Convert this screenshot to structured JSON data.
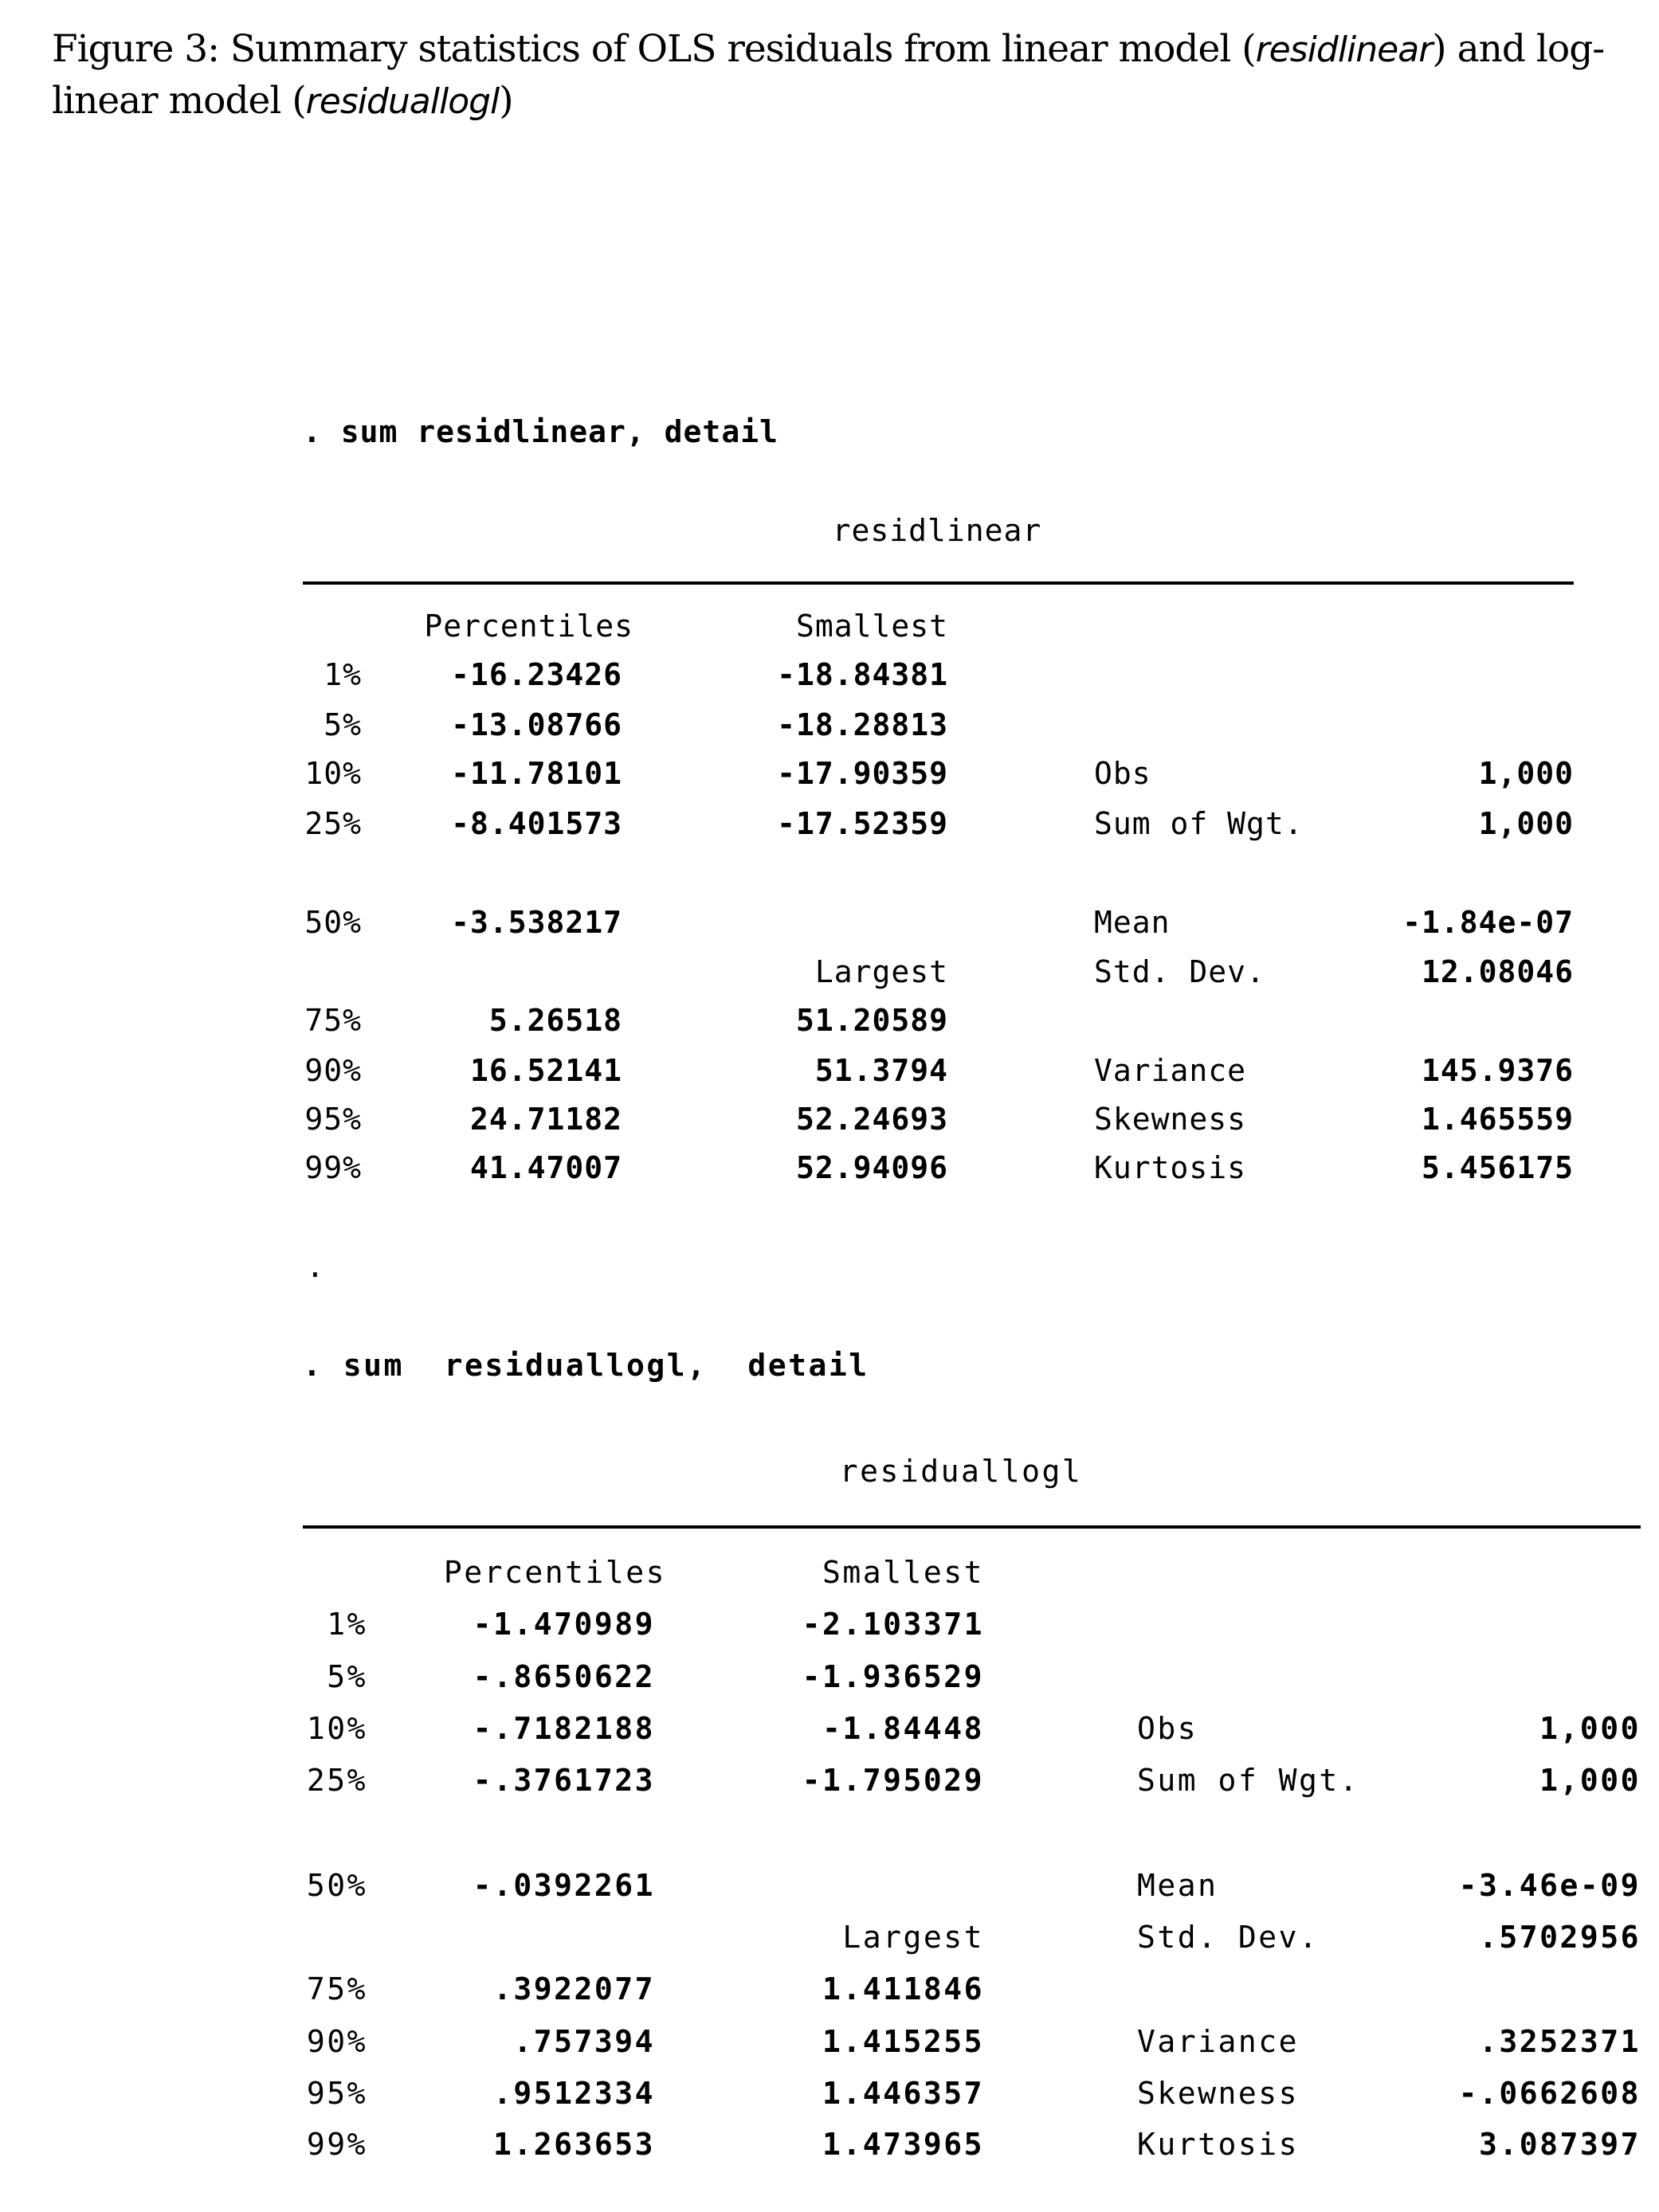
{
  "title": {
    "prefix": "Figure 3: Summary statistics of OLS residuals from linear model (",
    "var1": "residlinear",
    "middle": ") and log-linear model (",
    "var2": "residuallogl",
    "suffix": ")"
  },
  "separator_dot": ".",
  "tables": [
    {
      "command": ". sum residlinear, detail",
      "variable": "residlinear",
      "headers": {
        "percentiles": "Percentiles",
        "smallest": "Smallest",
        "largest": "Largest"
      },
      "rows": [
        {
          "pct": "1%",
          "percentile": "-16.23426",
          "extreme": "-18.84381",
          "stat": "",
          "value": ""
        },
        {
          "pct": "5%",
          "percentile": "-13.08766",
          "extreme": "-18.28813",
          "stat": "",
          "value": ""
        },
        {
          "pct": "10%",
          "percentile": "-11.78101",
          "extreme": "-17.90359",
          "stat": "Obs",
          "value": "1,000"
        },
        {
          "pct": "25%",
          "percentile": "-8.401573",
          "extreme": "-17.52359",
          "stat": "Sum of Wgt.",
          "value": "1,000"
        },
        {
          "pct": "50%",
          "percentile": "-3.538217",
          "extreme": "",
          "stat": "Mean",
          "value": "-1.84e-07"
        },
        {
          "pct": "",
          "percentile": "",
          "extreme": "",
          "stat": "Std. Dev.",
          "value": "12.08046"
        },
        {
          "pct": "75%",
          "percentile": "5.26518",
          "extreme": "51.20589",
          "stat": "",
          "value": ""
        },
        {
          "pct": "90%",
          "percentile": "16.52141",
          "extreme": "51.3794",
          "stat": "Variance",
          "value": "145.9376"
        },
        {
          "pct": "95%",
          "percentile": "24.71182",
          "extreme": "52.24693",
          "stat": "Skewness",
          "value": "1.465559"
        },
        {
          "pct": "99%",
          "percentile": "41.47007",
          "extreme": "52.94096",
          "stat": "Kurtosis",
          "value": "5.456175"
        }
      ]
    },
    {
      "command": ". sum  residuallogl,  detail",
      "variable": "residuallogl",
      "headers": {
        "percentiles": "Percentiles",
        "smallest": "Smallest",
        "largest": "Largest"
      },
      "rows": [
        {
          "pct": "1%",
          "percentile": "-1.470989",
          "extreme": "-2.103371",
          "stat": "",
          "value": ""
        },
        {
          "pct": "5%",
          "percentile": "-.8650622",
          "extreme": "-1.936529",
          "stat": "",
          "value": ""
        },
        {
          "pct": "10%",
          "percentile": "-.7182188",
          "extreme": "-1.84448",
          "stat": "Obs",
          "value": "1,000"
        },
        {
          "pct": "25%",
          "percentile": "-.3761723",
          "extreme": "-1.795029",
          "stat": "Sum of Wgt.",
          "value": "1,000"
        },
        {
          "pct": "50%",
          "percentile": "-.0392261",
          "extreme": "",
          "stat": "Mean",
          "value": "-3.46e-09"
        },
        {
          "pct": "",
          "percentile": "",
          "extreme": "",
          "stat": "Std. Dev.",
          "value": ".5702956"
        },
        {
          "pct": "75%",
          "percentile": ".3922077",
          "extreme": "1.411846",
          "stat": "",
          "value": ""
        },
        {
          "pct": "90%",
          "percentile": ".757394",
          "extreme": "1.415255",
          "stat": "Variance",
          "value": ".3252371"
        },
        {
          "pct": "95%",
          "percentile": ".9512334",
          "extreme": "1.446357",
          "stat": "Skewness",
          "value": "-.0662608"
        },
        {
          "pct": "99%",
          "percentile": "1.263653",
          "extreme": "1.473965",
          "stat": "Kurtosis",
          "value": "3.087397"
        }
      ]
    }
  ]
}
